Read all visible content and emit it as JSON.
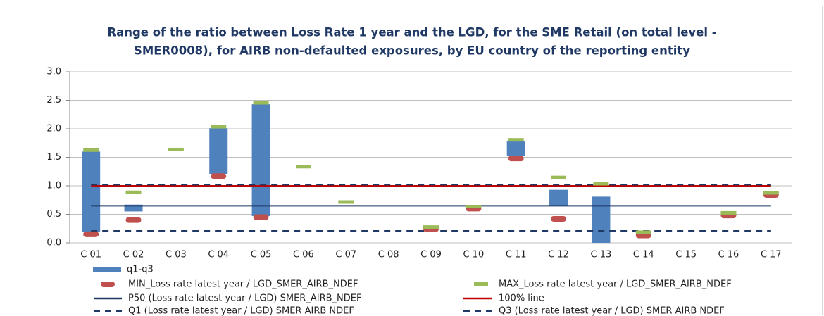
{
  "chart_data": {
    "type": "range_bar",
    "title": [
      "Range of the ratio between Loss Rate 1 year and the LGD, for the SME Retail (on total level -",
      "SMER0008), for AIRB non-defaulted exposures, by EU country of the reporting entity"
    ],
    "categories": [
      "C 01",
      "C 02",
      "C 03",
      "C 04",
      "C 05",
      "C 06",
      "C 07",
      "C 08",
      "C 09",
      "C 10",
      "C 11",
      "C 12",
      "C 13",
      "C 14",
      "C 15",
      "C 16",
      "C 17"
    ],
    "ylim": [
      0,
      3
    ],
    "yticks": [
      {
        "value": 0,
        "label": "0.0"
      },
      0.5,
      {
        "value": 1,
        "label": "1.0"
      },
      1.5,
      {
        "value": 2,
        "label": "2.0"
      },
      2.5,
      {
        "value": 3,
        "label": "3.0"
      }
    ],
    "grid": true,
    "range": {
      "name": "q1-q3",
      "color": "#4f81bd",
      "low": [
        0.19,
        0.55,
        null,
        1.21,
        0.47,
        null,
        null,
        null,
        null,
        null,
        1.52,
        0.65,
        0,
        null,
        null,
        null,
        null
      ],
      "high": [
        1.6,
        0.67,
        null,
        2.01,
        2.43,
        null,
        null,
        null,
        null,
        null,
        1.78,
        0.93,
        0.81,
        null,
        null,
        null,
        null
      ]
    },
    "series": [
      {
        "name": "MIN_Loss rate latest year / LGD_SMER_AIRB_NDEF",
        "color": "#c0504d",
        "marker": "min",
        "values": [
          0.15,
          0.4,
          null,
          1.17,
          0.45,
          null,
          null,
          null,
          0.24,
          0.6,
          1.48,
          0.42,
          null,
          0.13,
          null,
          0.48,
          0.84
        ]
      },
      {
        "name": "MAX_Loss rate latest year / LGD_SMER_AIRB_NDEF",
        "color": "#9bbb59",
        "marker": "max",
        "values": [
          1.62,
          0.88,
          1.63,
          2.03,
          2.45,
          1.33,
          0.71,
          null,
          0.27,
          0.63,
          1.8,
          1.14,
          1.03,
          0.18,
          null,
          0.52,
          0.87
        ]
      }
    ],
    "lines": [
      {
        "name": "P50 (Loss rate latest year / LGD) SMER_AIRB_NDEF",
        "color": "#1f3864",
        "dash": false,
        "value": 0.65
      },
      {
        "name": "100% line",
        "color": "#c00000",
        "dash": false,
        "value": 1
      },
      {
        "name": "Q1  (Loss rate latest year / LGD) SMER AIRB NDEF",
        "color": "#1f3864",
        "dash": true,
        "value": 0.21
      },
      {
        "name": "Q3  (Loss rate latest year / LGD) SMER AIRB NDEF",
        "color": "#1f3864",
        "dash": true,
        "value": 1.02
      }
    ]
  }
}
